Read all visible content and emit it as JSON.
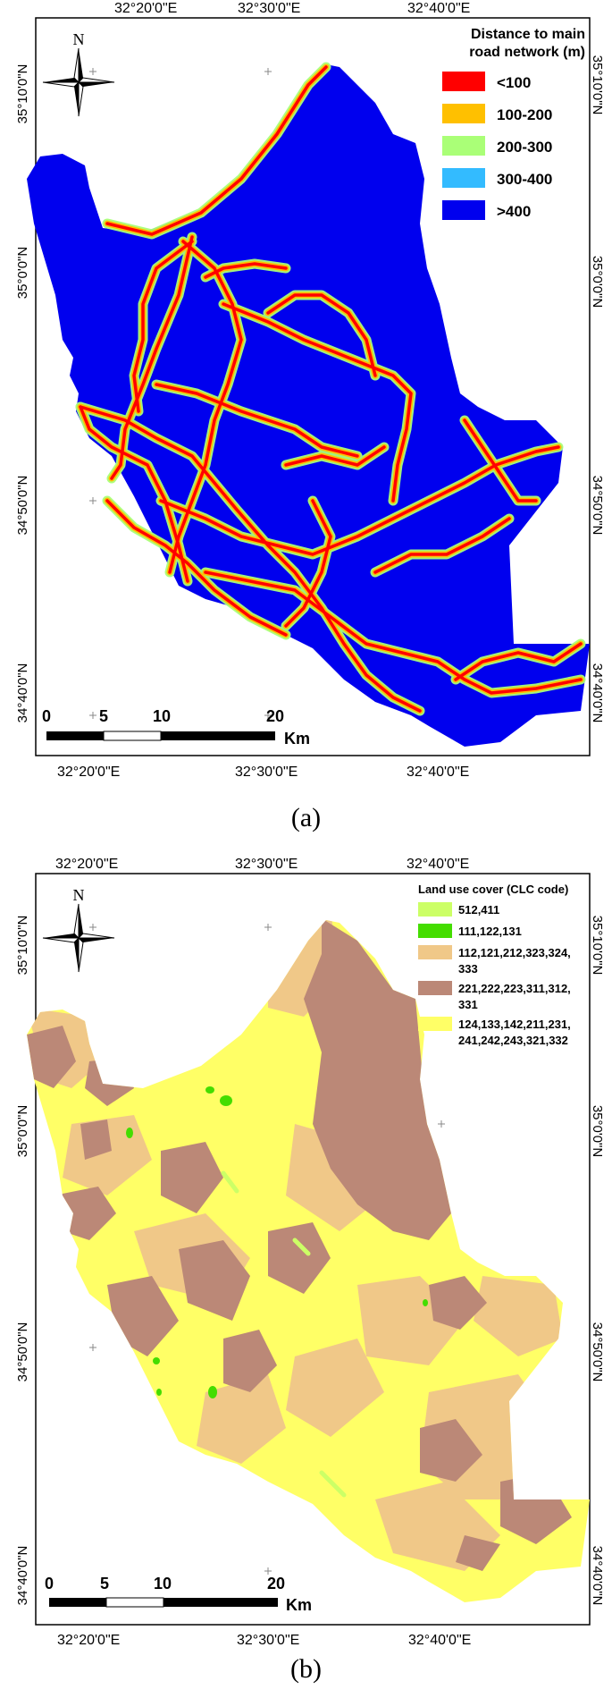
{
  "map_a": {
    "legend_title_line1": "Distance to main",
    "legend_title_line2": "road network (m)",
    "legend": [
      {
        "label": "<100",
        "color": "#ff0000"
      },
      {
        "label": "100-200",
        "color": "#ffc000"
      },
      {
        "label": "200-300",
        "color": "#aaff77"
      },
      {
        "label": "300-400",
        "color": "#33bbff"
      },
      {
        "label": ">400",
        "color": "#0000ee"
      }
    ],
    "lon_ticks": [
      "32°20'0\"E",
      "32°30'0\"E",
      "32°40'0\"E"
    ],
    "lat_ticks": [
      "35°10'0\"N",
      "35°0'0\"N",
      "34°50'0\"N",
      "34°40'0\"N"
    ],
    "north_label": "N",
    "scale": {
      "labels": [
        "0",
        "5",
        "10",
        "20"
      ],
      "unit": "Km"
    },
    "caption": "(a)"
  },
  "map_b": {
    "legend_title": "Land use cover (CLC code)",
    "legend": [
      {
        "line1": "512,411",
        "line2": "",
        "color": "#ccff66"
      },
      {
        "line1": "111,122,131",
        "line2": "",
        "color": "#44dd00"
      },
      {
        "line1": "112,121,212,323,324,",
        "line2": "333",
        "color": "#f0c888"
      },
      {
        "line1": "221,222,223,311,312,",
        "line2": "331",
        "color": "#bb8877"
      },
      {
        "line1": "124,133,142,211,231,",
        "line2": "241,242,243,321,332",
        "color": "#ffff66"
      }
    ],
    "lon_ticks": [
      "32°20'0\"E",
      "32°30'0\"E",
      "32°40'0\"E"
    ],
    "lat_ticks": [
      "35°10'0\"N",
      "35°0'0\"N",
      "34°50'0\"N",
      "34°40'0\"N"
    ],
    "north_label": "N",
    "scale": {
      "labels": [
        "0",
        "5",
        "10",
        "20"
      ],
      "unit": "Km"
    },
    "caption": "(b)"
  }
}
